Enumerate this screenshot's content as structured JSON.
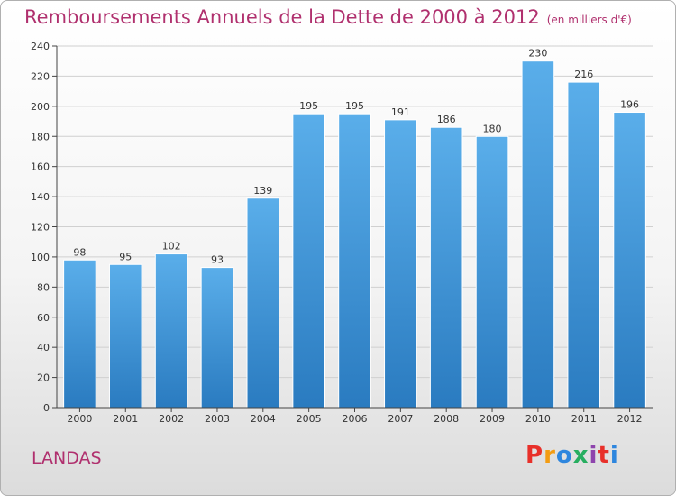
{
  "header": {
    "title": "Remboursements Annuels de la Dette de 2000 à 2012",
    "unit": "(en milliers d'€)"
  },
  "footer": {
    "place": "LANDAS",
    "logo_text": "Proxiti",
    "logo_colors": [
      "#e8302a",
      "#f39c12",
      "#2e86de",
      "#27ae60",
      "#8e44ad",
      "#e8302a",
      "#2e86de"
    ]
  },
  "chart_data": {
    "type": "bar",
    "title": "Remboursements Annuels de la Dette de 2000 à 2012",
    "subtitle": "(en milliers d'€)",
    "xlabel": "",
    "ylabel": "",
    "categories": [
      "2000",
      "2001",
      "2002",
      "2003",
      "2004",
      "2005",
      "2006",
      "2007",
      "2008",
      "2009",
      "2010",
      "2011",
      "2012"
    ],
    "values": [
      98,
      95,
      102,
      93,
      139,
      195,
      195,
      191,
      186,
      180,
      230,
      216,
      196
    ],
    "ylim": [
      0,
      240
    ],
    "yticks": [
      0,
      20,
      40,
      60,
      80,
      100,
      120,
      140,
      160,
      180,
      200,
      220,
      240
    ],
    "grid": true,
    "legend": "none",
    "bar_color_top": "#5aaeea",
    "bar_color_bottom": "#2a7bc0",
    "grid_color": "#d0d0d0"
  }
}
